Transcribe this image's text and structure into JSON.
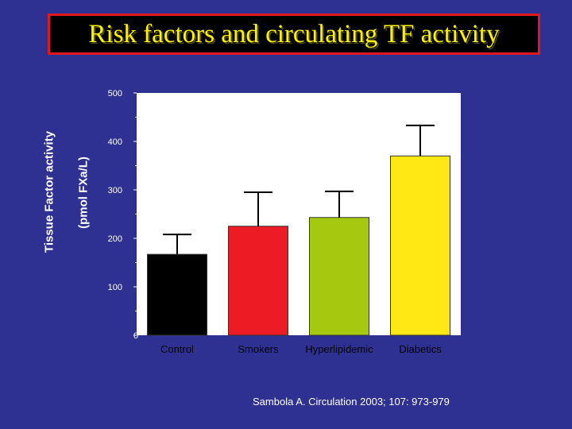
{
  "title": "Risk factors and circulating TF activity",
  "ylabel_line1": "Tissue Factor activity",
  "ylabel_line2": "(pmol FXa/L)",
  "citation": "Sambola A.  Circulation 2003; 107: 973-979",
  "colors": {
    "background": "#2E3192",
    "title_bg": "#000000",
    "title_border": "#E0191F",
    "title_text": "#FFF200",
    "plot_bg": "#FFFFFF"
  },
  "chart_data": {
    "type": "bar",
    "categories": [
      "Control",
      "Smokers",
      "Hyperlipidemic",
      "Diabetics"
    ],
    "values": [
      167,
      225,
      243,
      370
    ],
    "error_upper": [
      208,
      295,
      297,
      433
    ],
    "bar_colors": [
      "#000000",
      "#ED1C24",
      "#A6C80F",
      "#FFE814"
    ],
    "ylim": [
      0,
      500
    ],
    "yticks": [
      "0",
      "100",
      "200",
      "300",
      "400",
      "500"
    ],
    "title": "Risk factors and circulating TF activity",
    "ylabel": "Tissue Factor activity (pmol FXa/L)",
    "xlabel": "",
    "grid": false
  }
}
